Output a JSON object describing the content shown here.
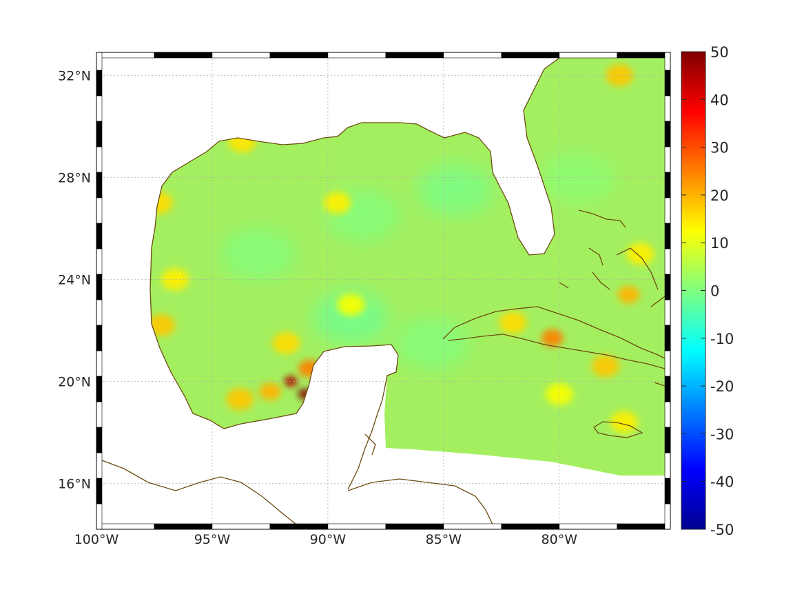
{
  "map": {
    "lon_range": [
      -100,
      -75.2
    ],
    "lat_range": [
      14.2,
      32.9
    ],
    "grid": true,
    "lon_ticks": [
      {
        "value": -100,
        "label": "100°W"
      },
      {
        "value": -95,
        "label": "95°W"
      },
      {
        "value": -90,
        "label": "90°W"
      },
      {
        "value": -85,
        "label": "85°W"
      },
      {
        "value": -80,
        "label": "80°W"
      }
    ],
    "lat_ticks": [
      {
        "value": 16,
        "label": "16°N"
      },
      {
        "value": 20,
        "label": "20°N"
      },
      {
        "value": 24,
        "label": "24°N"
      },
      {
        "value": 28,
        "label": "28°N"
      },
      {
        "value": 32,
        "label": "32°N"
      }
    ],
    "coastline_color": "#6b4a12",
    "background_field_color": "#a4ef5f",
    "hotspots": [
      {
        "lon": -91.6,
        "lat": 20.0,
        "value": 45
      },
      {
        "lon": -91.0,
        "lat": 19.5,
        "value": 50
      },
      {
        "lon": -90.8,
        "lat": 20.5,
        "value": 25
      },
      {
        "lon": -92.5,
        "lat": 19.6,
        "value": 20
      },
      {
        "lon": -93.8,
        "lat": 19.3,
        "value": 18
      },
      {
        "lon": -97.2,
        "lat": 22.2,
        "value": 18
      },
      {
        "lon": -96.6,
        "lat": 24.0,
        "value": 14
      },
      {
        "lon": -97.3,
        "lat": 27.0,
        "value": 16
      },
      {
        "lon": -93.7,
        "lat": 29.4,
        "value": 15
      },
      {
        "lon": -89.6,
        "lat": 27.0,
        "value": 14
      },
      {
        "lon": -89.0,
        "lat": 23.0,
        "value": 12
      },
      {
        "lon": -91.8,
        "lat": 21.5,
        "value": 16
      },
      {
        "lon": -77.0,
        "lat": 23.4,
        "value": 20
      },
      {
        "lon": -76.5,
        "lat": 25.0,
        "value": 14
      },
      {
        "lon": -77.4,
        "lat": 32.0,
        "value": 18
      },
      {
        "lon": -80.3,
        "lat": 21.7,
        "value": 25
      },
      {
        "lon": -82.0,
        "lat": 22.3,
        "value": 16
      },
      {
        "lon": -78.0,
        "lat": 20.6,
        "value": 18
      },
      {
        "lon": -77.2,
        "lat": 18.4,
        "value": 14
      },
      {
        "lon": -80.0,
        "lat": 19.5,
        "value": 12
      }
    ],
    "coolspots": [
      {
        "lon": -93.0,
        "lat": 25.0,
        "value": 0
      },
      {
        "lon": -88.5,
        "lat": 26.5,
        "value": 0
      },
      {
        "lon": -89.0,
        "lat": 22.5,
        "value": -2
      },
      {
        "lon": -84.5,
        "lat": 27.5,
        "value": -1
      },
      {
        "lon": -85.5,
        "lat": 21.5,
        "value": 0
      },
      {
        "lon": -79.2,
        "lat": 28.0,
        "value": 1
      }
    ]
  },
  "colorbar": {
    "min": -50,
    "max": 50,
    "ticks": [
      {
        "value": 50,
        "label": "50"
      },
      {
        "value": 40,
        "label": "40"
      },
      {
        "value": 30,
        "label": "30"
      },
      {
        "value": 20,
        "label": "20"
      },
      {
        "value": 10,
        "label": "10"
      },
      {
        "value": 0,
        "label": "0"
      },
      {
        "value": -10,
        "label": "-10"
      },
      {
        "value": -20,
        "label": "-20"
      },
      {
        "value": -30,
        "label": "-30"
      },
      {
        "value": -40,
        "label": "-40"
      },
      {
        "value": -50,
        "label": "-50"
      }
    ],
    "colormap": "jet"
  }
}
